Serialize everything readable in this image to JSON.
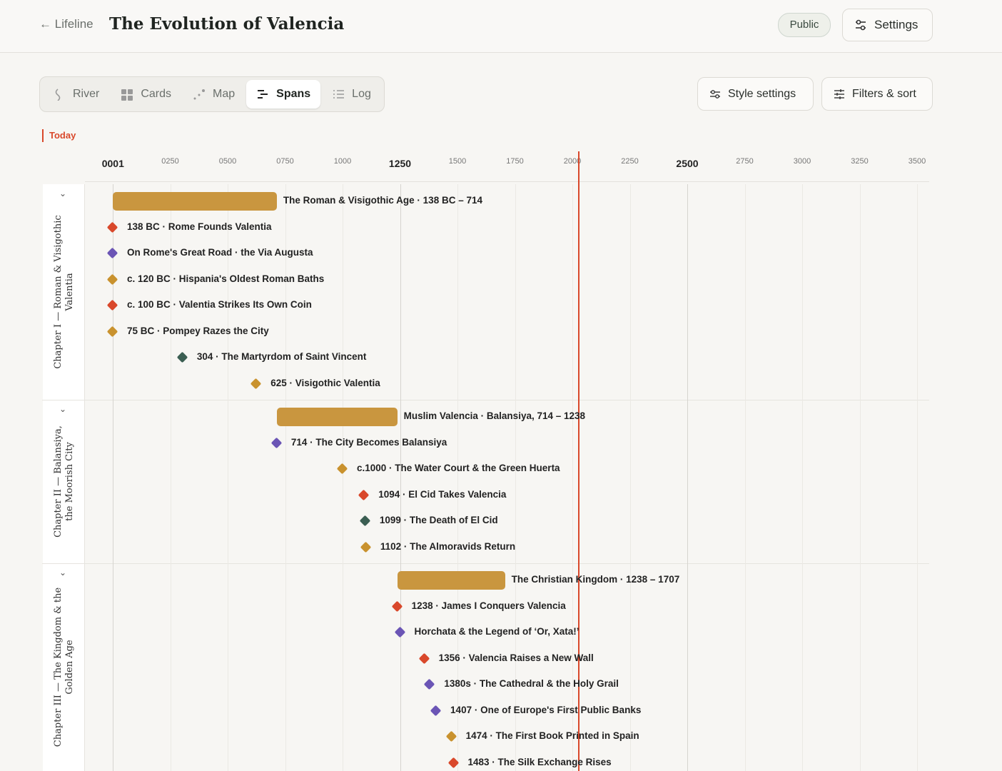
{
  "header": {
    "back_label": "Lifeline",
    "title": "The Evolution of Valencia",
    "badge": "Public",
    "settings": "Settings"
  },
  "views": {
    "items": [
      "River",
      "Cards",
      "Map",
      "Spans",
      "Log"
    ],
    "active": "Spans"
  },
  "actions": [
    "Style settings",
    "Filters & sort"
  ],
  "today": {
    "label": "Today",
    "year": 2026,
    "color": "#d9482b"
  },
  "axis": {
    "xlim": [
      0,
      3500
    ],
    "xticks": [
      {
        "value": 1,
        "label": "0001",
        "major": true
      },
      {
        "value": 250,
        "label": "0250"
      },
      {
        "value": 500,
        "label": "0500"
      },
      {
        "value": 750,
        "label": "0750"
      },
      1000,
      {
        "value": 1250,
        "label": "1250",
        "major": true
      },
      1500,
      1750,
      2000,
      2250,
      {
        "value": 2500,
        "label": "2500",
        "major": true
      },
      2750,
      3000,
      3250,
      3500
    ]
  },
  "chapters": [
    {
      "title": "Chapter I — Roman & Visigothic Valentia",
      "span": {
        "label": "The Roman & Visigothic Age · 138 BC – 714",
        "start": -138,
        "end": 714,
        "color": "#c9963f"
      },
      "events": [
        {
          "label": "138 BC · Rome Founds Valentia",
          "year": -138,
          "color": "#d9482b"
        },
        {
          "label": "On Rome's Great Road · the Via Augusta",
          "year": -120,
          "color": "#6b55b5"
        },
        {
          "label": "c. 120 BC · Hispania's Oldest Roman Baths",
          "year": -120,
          "color": "#c9922e"
        },
        {
          "label": "c. 100 BC · Valentia Strikes Its Own Coin",
          "year": -100,
          "color": "#d9482b"
        },
        {
          "label": "75 BC · Pompey Razes the City",
          "year": -75,
          "color": "#c9922e"
        },
        {
          "label": "304 · The Martyrdom of Saint Vincent",
          "year": 304,
          "color": "#3b5e52"
        },
        {
          "label": "625 · Visigothic Valentia",
          "year": 625,
          "color": "#c9922e"
        }
      ]
    },
    {
      "title": "Chapter II — Balansiya, the Moorish City",
      "span": {
        "label": "Muslim Valencia · Balansiya, 714 – 1238",
        "start": 714,
        "end": 1238,
        "color": "#c9963f"
      },
      "events": [
        {
          "label": "714 · The City Becomes Balansiya",
          "year": 714,
          "color": "#6b55b5"
        },
        {
          "label": "c.1000 · The Water Court & the Green Huerta",
          "year": 1000,
          "color": "#c9922e"
        },
        {
          "label": "1094 · El Cid Takes Valencia",
          "year": 1094,
          "color": "#d9482b"
        },
        {
          "label": "1099 · The Death of El Cid",
          "year": 1099,
          "color": "#3b5e52"
        },
        {
          "label": "1102 · The Almoravids Return",
          "year": 1102,
          "color": "#c9922e"
        }
      ]
    },
    {
      "title": "Chapter III — The Kingdom & the Golden Age",
      "span": {
        "label": "The Christian Kingdom · 1238 – 1707",
        "start": 1238,
        "end": 1707,
        "color": "#c9963f"
      },
      "events": [
        {
          "label": "1238 · James I Conquers Valencia",
          "year": 1238,
          "color": "#d9482b"
        },
        {
          "label": "Horchata & the Legend of ‘Or, Xata!’",
          "year": 1250,
          "color": "#6b55b5"
        },
        {
          "label": "1356 · Valencia Raises a New Wall",
          "year": 1356,
          "color": "#d9482b"
        },
        {
          "label": "1380s · The Cathedral & the Holy Grail",
          "year": 1380,
          "color": "#6b55b5"
        },
        {
          "label": "1407 · One of Europe's First Public Banks",
          "year": 1407,
          "color": "#6b55b5"
        },
        {
          "label": "1474 · The First Book Printed in Spain",
          "year": 1474,
          "color": "#c9922e"
        },
        {
          "label": "1483 · The Silk Exchange Rises",
          "year": 1483,
          "color": "#d9482b"
        }
      ]
    }
  ]
}
